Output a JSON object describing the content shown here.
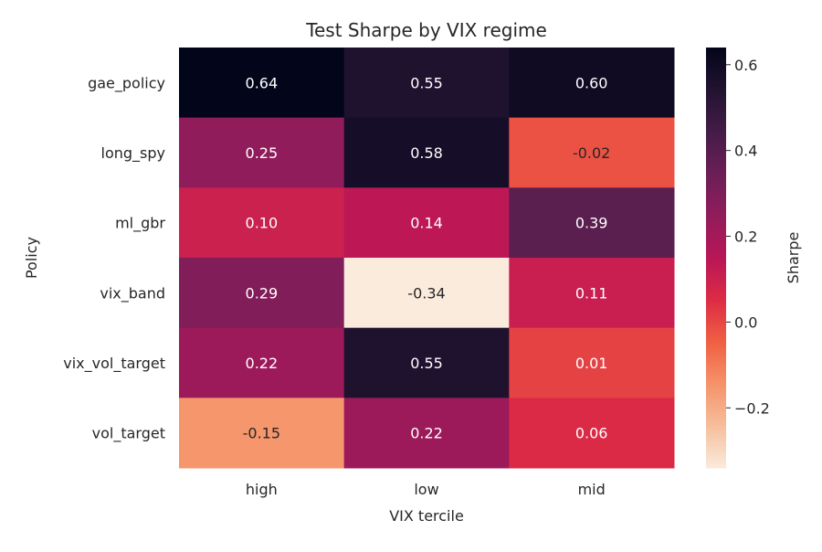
{
  "chart_data": {
    "type": "heatmap",
    "title": "Test Sharpe by VIX regime",
    "xlabel": "VIX tercile",
    "ylabel": "Policy",
    "x_categories": [
      "high",
      "low",
      "mid"
    ],
    "y_categories": [
      "gae_policy",
      "long_spy",
      "ml_gbr",
      "vix_band",
      "vix_vol_target",
      "vol_target"
    ],
    "values": [
      [
        0.64,
        0.55,
        0.6
      ],
      [
        0.25,
        0.58,
        -0.02
      ],
      [
        0.1,
        0.14,
        0.39
      ],
      [
        0.29,
        -0.34,
        0.11
      ],
      [
        0.22,
        0.55,
        0.01
      ],
      [
        -0.15,
        0.22,
        0.06
      ]
    ],
    "value_labels": [
      [
        "0.64",
        "0.55",
        "0.60"
      ],
      [
        "0.25",
        "0.58",
        "-0.02"
      ],
      [
        "0.10",
        "0.14",
        "0.39"
      ],
      [
        "0.29",
        "-0.34",
        "0.11"
      ],
      [
        "0.22",
        "0.55",
        "0.01"
      ],
      [
        "-0.15",
        "0.22",
        "0.06"
      ]
    ],
    "colormap": "rocket_r",
    "colorbar": {
      "label": "Sharpe",
      "range": [
        -0.34,
        0.64
      ],
      "ticks": [
        -0.2,
        0.0,
        0.2,
        0.4,
        0.6
      ],
      "tick_labels": [
        "−0.2",
        "0.0",
        "0.2",
        "0.4",
        "0.6"
      ]
    }
  }
}
